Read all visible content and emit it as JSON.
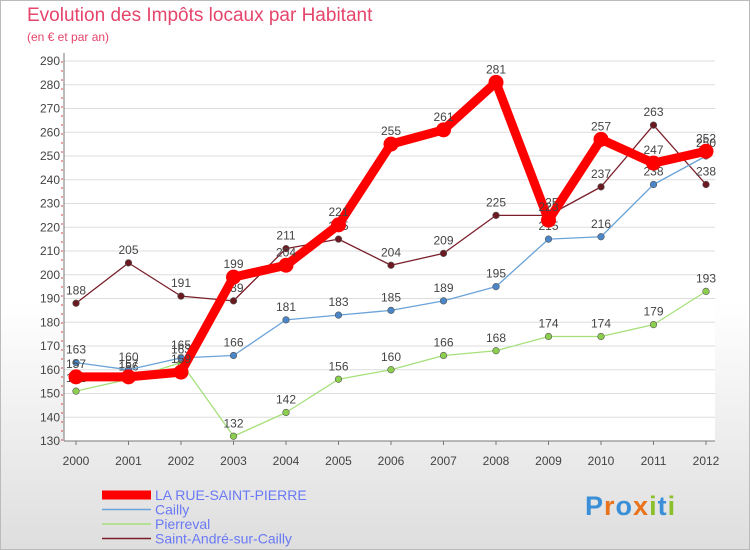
{
  "chart_data": {
    "type": "line",
    "title": "Evolution des Impôts locaux par Habitant",
    "subtitle": "(en € et par an)",
    "categories": [
      "2000",
      "2001",
      "2002",
      "2003",
      "2004",
      "2005",
      "2006",
      "2007",
      "2008",
      "2009",
      "2010",
      "2011",
      "2012"
    ],
    "ylim": [
      130,
      290
    ],
    "yticks": [
      130,
      140,
      150,
      160,
      170,
      180,
      190,
      200,
      210,
      220,
      230,
      240,
      250,
      260,
      270,
      280,
      290
    ],
    "grid": "horizontal",
    "legend_position": "bottom-left",
    "series": [
      {
        "name": "Saint-André-sur-Cailly",
        "color": "#7a1f2a",
        "marker": "#6b1a22",
        "values": [
          188,
          205,
          191,
          189,
          211,
          215,
          204,
          209,
          225,
          225,
          237,
          263,
          238
        ]
      },
      {
        "name": "Pierreval",
        "color": "#a6e07a",
        "marker": "#8ccf4f",
        "values": [
          151,
          156,
          163,
          132,
          142,
          156,
          160,
          166,
          168,
          174,
          174,
          179,
          193
        ]
      },
      {
        "name": "Cailly",
        "color": "#6aa3d8",
        "marker": "#4a86c8",
        "values": [
          163,
          160,
          165,
          166,
          181,
          183,
          185,
          189,
          195,
          215,
          216,
          238,
          250
        ]
      },
      {
        "name": "LA RUE-SAINT-PIERRE",
        "color": "#ff0000",
        "marker": "#ff0000",
        "values": [
          157,
          157,
          159,
          199,
          204,
          221,
          255,
          261,
          281,
          223,
          257,
          247,
          252
        ]
      }
    ],
    "legend": [
      "LA RUE-SAINT-PIERRE",
      "Cailly",
      "Pierreval",
      "Saint-André-sur-Cailly"
    ]
  },
  "logo": {
    "text": "Proxiti",
    "letters": [
      {
        "ch": "P",
        "color": "#3a8fd8"
      },
      {
        "ch": "r",
        "color": "#e8731c"
      },
      {
        "ch": "o",
        "color": "#3a8fd8"
      },
      {
        "ch": "x",
        "color": "#e8731c"
      },
      {
        "ch": "i",
        "color": "#8bbf2c"
      },
      {
        "ch": "t",
        "color": "#3a8fd8"
      },
      {
        "ch": "i",
        "color": "#8bbf2c"
      }
    ]
  }
}
